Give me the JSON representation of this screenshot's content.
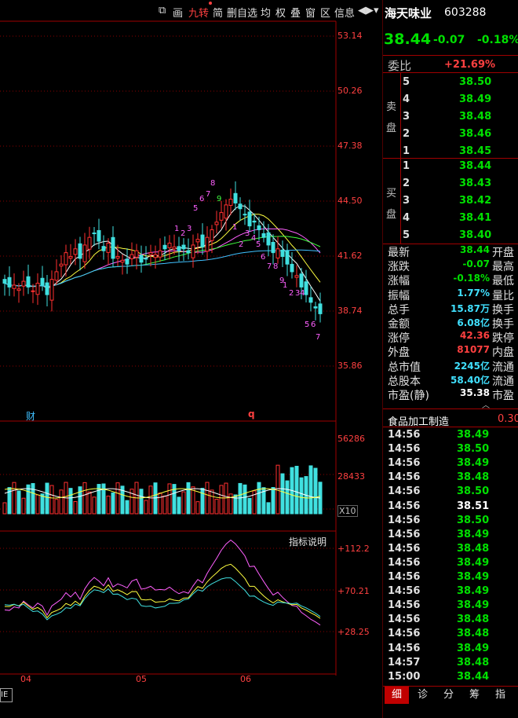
{
  "toolbar": {
    "items": [
      "画",
      "九转",
      "简",
      "删自选",
      "均",
      "权",
      "叠",
      "窗",
      "区",
      "信息"
    ],
    "active_index": 1,
    "arrow_icon": "right-arrow-icon",
    "dropdown_icon": "chevron-down-icon"
  },
  "stock": {
    "name": "海天味业",
    "code": "603288",
    "price": "38.44",
    "change": "-0.07",
    "change_pct": "-0.18%"
  },
  "weibi": {
    "label": "委比",
    "value": "+21.69%"
  },
  "sell_label": [
    "卖",
    "盘"
  ],
  "buy_label": [
    "买",
    "盘"
  ],
  "asks": [
    {
      "level": "5",
      "price": "38.50"
    },
    {
      "level": "4",
      "price": "38.49"
    },
    {
      "level": "3",
      "price": "38.48"
    },
    {
      "level": "2",
      "price": "38.46"
    },
    {
      "level": "1",
      "price": "38.45"
    }
  ],
  "bids": [
    {
      "level": "1",
      "price": "38.44"
    },
    {
      "level": "2",
      "price": "38.43"
    },
    {
      "level": "3",
      "price": "38.42"
    },
    {
      "level": "4",
      "price": "38.41"
    },
    {
      "level": "5",
      "price": "38.40"
    }
  ],
  "stats": [
    {
      "k": "最新",
      "v": "38.44",
      "color": "green",
      "k2": "开盘"
    },
    {
      "k": "涨跌",
      "v": "-0.07",
      "color": "green",
      "k2": "最高"
    },
    {
      "k": "涨幅",
      "v": "-0.18%",
      "color": "green",
      "k2": "最低"
    },
    {
      "k": "振幅",
      "v": "1.77%",
      "color": "cyan",
      "k2": "量比"
    },
    {
      "k": "总手",
      "v": "15.87万",
      "color": "cyan",
      "k2": "换手"
    },
    {
      "k": "金额",
      "v": "6.08亿",
      "color": "cyan",
      "k2": "换手"
    },
    {
      "k": "涨停",
      "v": "42.36",
      "color": "red",
      "k2": "跌停"
    },
    {
      "k": "外盘",
      "v": "81077",
      "color": "red",
      "k2": "内盘"
    },
    {
      "k": "总市值",
      "v": "2245亿",
      "color": "cyan",
      "k2": "流通"
    },
    {
      "k": "总股本",
      "v": "58.40亿",
      "color": "cyan",
      "k2": "流通"
    },
    {
      "k": "市盈(静)",
      "v": "35.38",
      "color": "white",
      "k2": "市盈"
    }
  ],
  "sector": {
    "name": "食品加工制造",
    "value": "0.30"
  },
  "ticks": [
    {
      "t": "14:56",
      "p": "38.49",
      "c": "green"
    },
    {
      "t": "14:56",
      "p": "38.50",
      "c": "green"
    },
    {
      "t": "14:56",
      "p": "38.49",
      "c": "green"
    },
    {
      "t": "14:56",
      "p": "38.48",
      "c": "green"
    },
    {
      "t": "14:56",
      "p": "38.50",
      "c": "green"
    },
    {
      "t": "14:56",
      "p": "38.51",
      "c": "white"
    },
    {
      "t": "14:56",
      "p": "38.50",
      "c": "green"
    },
    {
      "t": "14:56",
      "p": "38.49",
      "c": "green"
    },
    {
      "t": "14:56",
      "p": "38.48",
      "c": "green"
    },
    {
      "t": "14:56",
      "p": "38.49",
      "c": "green"
    },
    {
      "t": "14:56",
      "p": "38.49",
      "c": "green"
    },
    {
      "t": "14:56",
      "p": "38.49",
      "c": "green"
    },
    {
      "t": "14:56",
      "p": "38.49",
      "c": "green"
    },
    {
      "t": "14:56",
      "p": "38.48",
      "c": "green"
    },
    {
      "t": "14:56",
      "p": "38.48",
      "c": "green"
    },
    {
      "t": "14:56",
      "p": "38.49",
      "c": "green"
    },
    {
      "t": "14:57",
      "p": "38.48",
      "c": "green"
    },
    {
      "t": "15:00",
      "p": "38.44",
      "c": "green"
    }
  ],
  "tabs": [
    "细",
    "诊",
    "分",
    "筹",
    "指"
  ],
  "price_axis": [
    "53.14",
    "50.26",
    "47.38",
    "44.50",
    "41.62",
    "38.74",
    "35.86"
  ],
  "vol_axis": [
    "56286",
    "28433",
    "X10"
  ],
  "ind_axis": [
    "+112.2",
    "+70.21",
    "+28.25"
  ],
  "ind_label": "指标说明",
  "months": [
    "04",
    "05",
    "06"
  ],
  "markers": {
    "cai": "财",
    "q": "q"
  },
  "bottom_left": "IE",
  "chart_data": {
    "type": "candlestick",
    "ylim": [
      35.86,
      53.14
    ],
    "y_ticks": [
      53.14,
      50.26,
      47.38,
      44.5,
      41.62,
      38.74,
      35.86
    ],
    "x_ticks": [
      "04",
      "05",
      "06"
    ],
    "volume_ticks": [
      "56286",
      "28433",
      "X10"
    ],
    "indicator_ticks": [
      "+112.2",
      "+70.21",
      "+28.25"
    ]
  }
}
